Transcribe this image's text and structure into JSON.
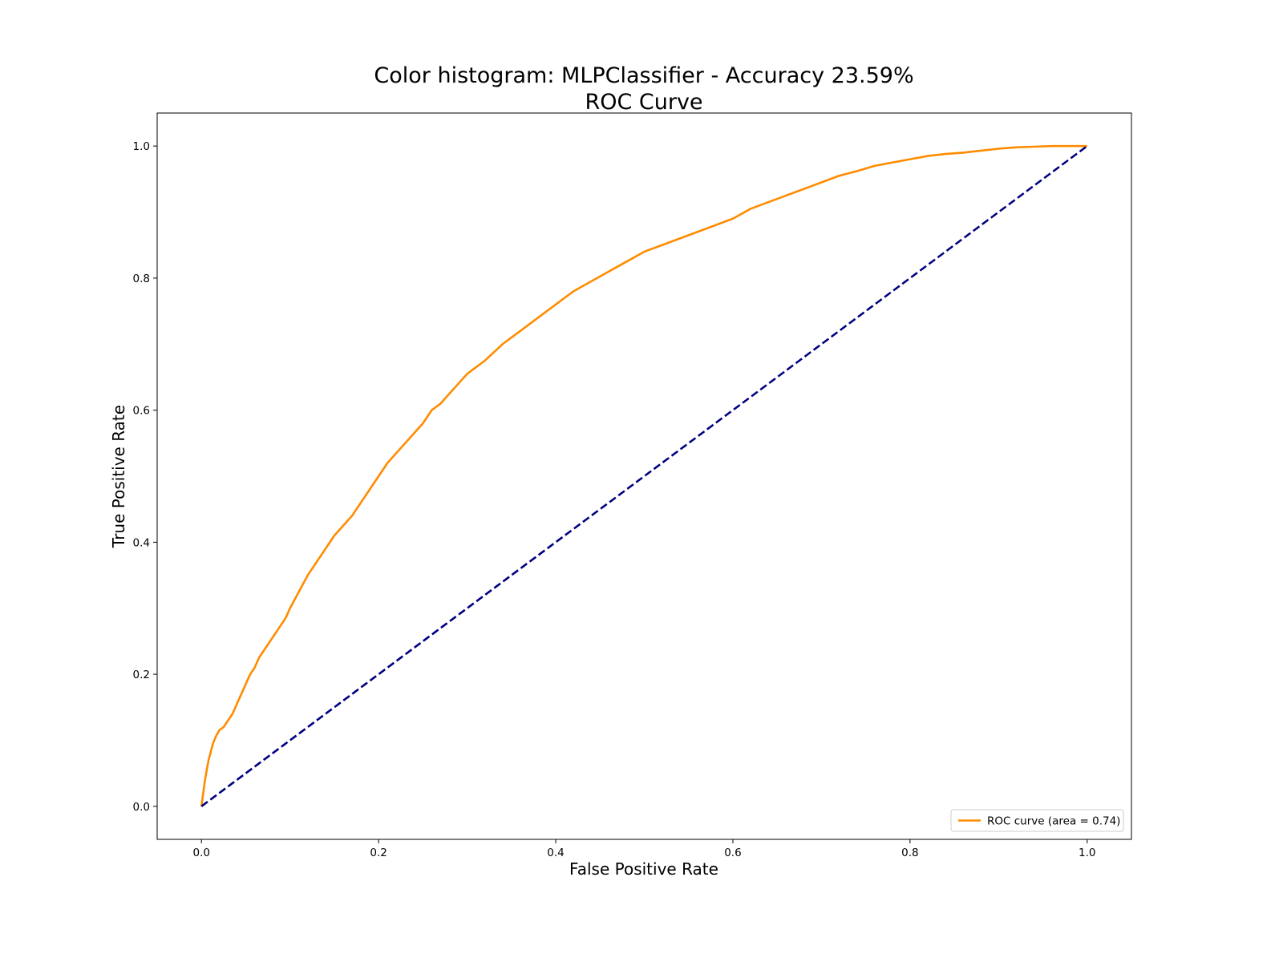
{
  "chart_data": {
    "type": "line",
    "title": "Color histogram: MLPClassifier - Accuracy 23.59%",
    "subtitle": "ROC Curve",
    "xlabel": "False Positive Rate",
    "ylabel": "True Positive Rate",
    "xlim": [
      -0.05,
      1.05
    ],
    "ylim": [
      -0.05,
      1.05
    ],
    "xticks": [
      0.0,
      0.2,
      0.4,
      0.6,
      0.8,
      1.0
    ],
    "xtick_labels": [
      "0.0",
      "0.2",
      "0.4",
      "0.6",
      "0.8",
      "1.0"
    ],
    "yticks": [
      0.0,
      0.2,
      0.4,
      0.6,
      0.8,
      1.0
    ],
    "ytick_labels": [
      "0.0",
      "0.2",
      "0.4",
      "0.6",
      "0.8",
      "1.0"
    ],
    "grid": false,
    "legend_position": "lower right",
    "series": [
      {
        "name": "ROC curve (area = 0.74)",
        "color": "#ff8c00",
        "style": "solid",
        "x": [
          0.0,
          0.002,
          0.004,
          0.006,
          0.008,
          0.01,
          0.013,
          0.016,
          0.02,
          0.025,
          0.03,
          0.035,
          0.04,
          0.045,
          0.05,
          0.055,
          0.06,
          0.065,
          0.07,
          0.075,
          0.08,
          0.085,
          0.09,
          0.095,
          0.1,
          0.11,
          0.12,
          0.13,
          0.14,
          0.15,
          0.16,
          0.17,
          0.18,
          0.19,
          0.2,
          0.21,
          0.22,
          0.23,
          0.24,
          0.25,
          0.26,
          0.27,
          0.28,
          0.29,
          0.3,
          0.32,
          0.34,
          0.36,
          0.38,
          0.4,
          0.42,
          0.44,
          0.46,
          0.48,
          0.5,
          0.52,
          0.54,
          0.56,
          0.58,
          0.6,
          0.62,
          0.64,
          0.66,
          0.68,
          0.7,
          0.72,
          0.74,
          0.76,
          0.78,
          0.8,
          0.82,
          0.84,
          0.86,
          0.88,
          0.9,
          0.92,
          0.94,
          0.96,
          0.98,
          1.0
        ],
        "y": [
          0.0,
          0.02,
          0.04,
          0.055,
          0.07,
          0.08,
          0.095,
          0.105,
          0.115,
          0.12,
          0.13,
          0.14,
          0.155,
          0.17,
          0.185,
          0.2,
          0.21,
          0.225,
          0.235,
          0.245,
          0.255,
          0.265,
          0.275,
          0.285,
          0.3,
          0.325,
          0.35,
          0.37,
          0.39,
          0.41,
          0.425,
          0.44,
          0.46,
          0.48,
          0.5,
          0.52,
          0.535,
          0.55,
          0.565,
          0.58,
          0.6,
          0.61,
          0.625,
          0.64,
          0.655,
          0.675,
          0.7,
          0.72,
          0.74,
          0.76,
          0.78,
          0.795,
          0.81,
          0.825,
          0.84,
          0.85,
          0.86,
          0.87,
          0.88,
          0.89,
          0.905,
          0.915,
          0.925,
          0.935,
          0.945,
          0.955,
          0.962,
          0.97,
          0.975,
          0.98,
          0.985,
          0.988,
          0.99,
          0.993,
          0.996,
          0.998,
          0.999,
          1.0,
          1.0,
          1.0
        ]
      },
      {
        "name": "",
        "color": "#000080",
        "style": "dashed",
        "x": [
          0.0,
          1.0
        ],
        "y": [
          0.0,
          1.0
        ]
      }
    ]
  }
}
